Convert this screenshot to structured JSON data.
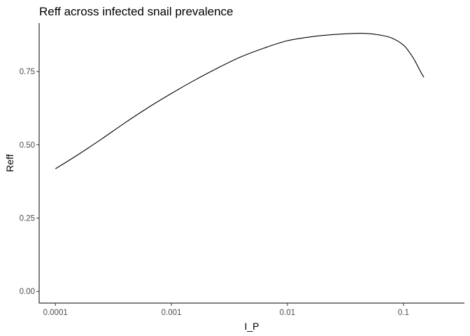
{
  "chart_data": {
    "type": "line",
    "title": "Reff across infected snail prevalence",
    "xlabel": "I_P",
    "ylabel": "Reff",
    "x_scale": "log10",
    "xlim": [
      7.25e-05,
      0.335
    ],
    "ylim": [
      -0.04,
      0.915
    ],
    "x_ticks": [
      {
        "value": 0.0001,
        "label": "0.0001"
      },
      {
        "value": 0.001,
        "label": "0.001"
      },
      {
        "value": 0.01,
        "label": "0.01"
      },
      {
        "value": 0.1,
        "label": "0.1"
      }
    ],
    "y_ticks": [
      {
        "value": 0.0,
        "label": "0.00"
      },
      {
        "value": 0.25,
        "label": "0.25"
      },
      {
        "value": 0.5,
        "label": "0.50"
      },
      {
        "value": 0.75,
        "label": "0.75"
      }
    ],
    "grid": false,
    "legend": "none",
    "series": [
      {
        "x": [
          0.0001,
          0.000158,
          0.000251,
          0.000398,
          0.000631,
          0.001,
          0.00158,
          0.00251,
          0.00398,
          0.00631,
          0.01,
          0.0158,
          0.0251,
          0.0398,
          0.0501,
          0.0631,
          0.0794,
          0.1,
          0.115,
          0.126,
          0.141,
          0.15
        ],
        "y": [
          0.418,
          0.467,
          0.52,
          0.575,
          0.627,
          0.675,
          0.72,
          0.762,
          0.8,
          0.83,
          0.855,
          0.868,
          0.876,
          0.88,
          0.879,
          0.874,
          0.864,
          0.84,
          0.81,
          0.785,
          0.748,
          0.73
        ],
        "color": "#000000"
      }
    ]
  }
}
